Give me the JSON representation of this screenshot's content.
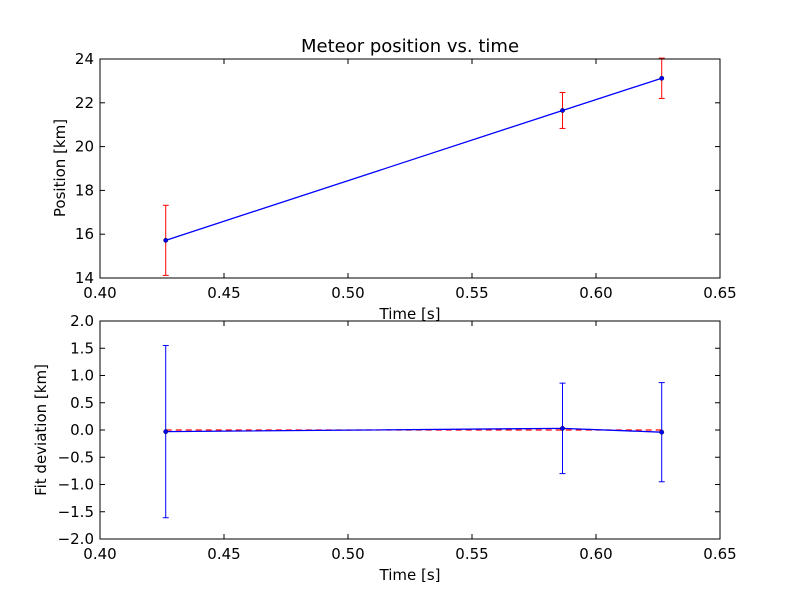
{
  "chart_data": [
    {
      "type": "line",
      "title": "Meteor position vs. time",
      "xlabel": "Time [s]",
      "ylabel": "Position [km]",
      "xlim": [
        0.4,
        0.65
      ],
      "ylim": [
        14,
        24
      ],
      "xticks": [
        "0.40",
        "0.45",
        "0.50",
        "0.55",
        "0.60",
        "0.65"
      ],
      "yticks": [
        "14",
        "16",
        "18",
        "20",
        "22",
        "24"
      ],
      "grid": false,
      "series": [
        {
          "x": [
            0.4265,
            0.5865,
            0.6265
          ],
          "values": [
            15.72,
            21.65,
            23.12
          ],
          "yerr": [
            1.6,
            0.82,
            0.92
          ],
          "line_color": "#0000ff",
          "error_color": "#ff0000",
          "marker": "point"
        }
      ]
    },
    {
      "type": "line",
      "title": "",
      "xlabel": "Time [s]",
      "ylabel": "Fit deviation [km]",
      "xlim": [
        0.4,
        0.65
      ],
      "ylim": [
        -2.0,
        2.0
      ],
      "xticks": [
        "0.40",
        "0.45",
        "0.50",
        "0.55",
        "0.60",
        "0.65"
      ],
      "yticks": [
        "−2.0",
        "−1.5",
        "−1.0",
        "−0.5",
        "0.0",
        "0.5",
        "1.0",
        "1.5",
        "2.0"
      ],
      "grid": false,
      "reference_line": {
        "y": 0.0,
        "style": "dashed",
        "color": "#ff0000"
      },
      "series": [
        {
          "x": [
            0.4265,
            0.5865,
            0.6265
          ],
          "values": [
            -0.03,
            0.03,
            -0.04
          ],
          "yerr": [
            1.58,
            0.83,
            0.91
          ],
          "line_color": "#0000ff",
          "error_color": "#0000ff",
          "marker": "point"
        }
      ]
    }
  ]
}
